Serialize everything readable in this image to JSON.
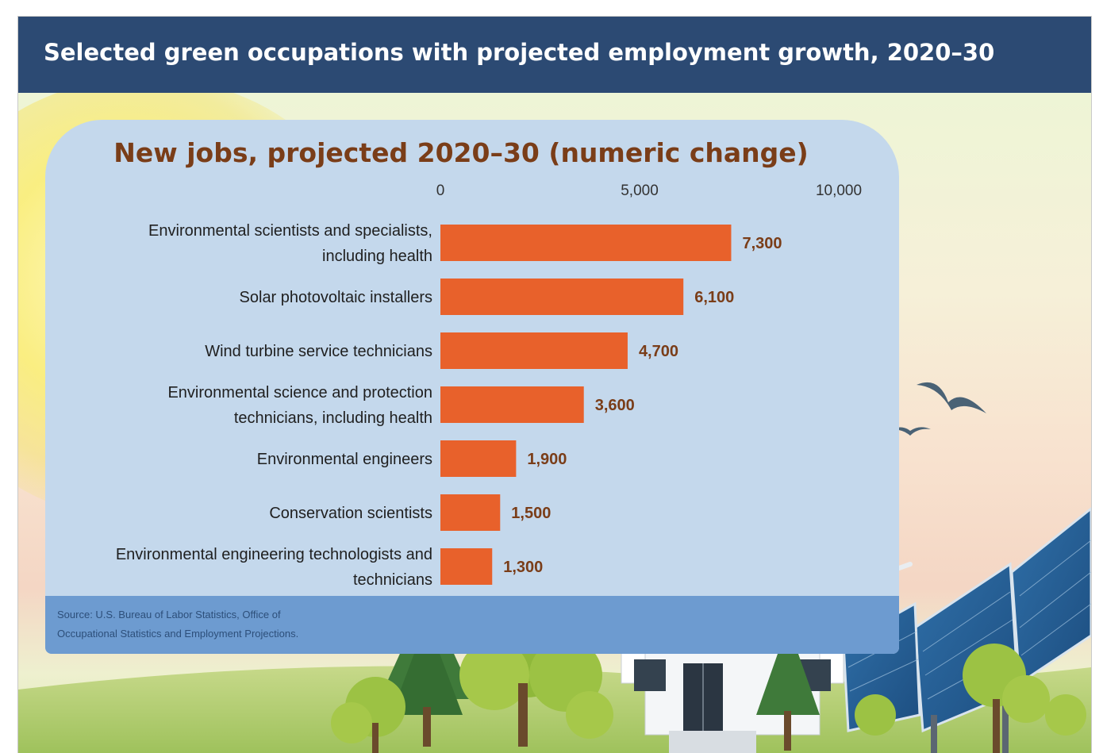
{
  "header": {
    "title": "Selected green occupations with projected employment growth, 2020–30"
  },
  "chart_data": {
    "type": "bar",
    "orientation": "horizontal",
    "title": "New jobs, projected 2020–30 (numeric change)",
    "categories": [
      "Environmental scientists and specialists, including health",
      "Solar photovoltaic installers",
      "Wind turbine service technicians",
      "Environmental science and protection technicians, including health",
      "Environmental engineers",
      "Conservation scientists",
      "Environmental engineering technologists and technicians"
    ],
    "category_lines": [
      [
        "Environmental scientists and specialists,",
        "including health"
      ],
      [
        "Solar photovoltaic installers"
      ],
      [
        "Wind turbine service technicians"
      ],
      [
        "Environmental science and protection",
        "technicians, including health"
      ],
      [
        "Environmental engineers"
      ],
      [
        "Conservation scientists"
      ],
      [
        "Environmental engineering technologists and",
        "technicians"
      ]
    ],
    "values": [
      7300,
      6100,
      4700,
      3600,
      1900,
      1500,
      1300
    ],
    "value_labels": [
      "7,300",
      "6,100",
      "4,700",
      "3,600",
      "1,900",
      "1,500",
      "1,300"
    ],
    "xlim": [
      0,
      10000
    ],
    "xticks": [
      0,
      5000,
      10000
    ],
    "xtick_labels": [
      "0",
      "5,000",
      "10,000"
    ],
    "axis_position": "top",
    "grid": false,
    "bar_color": "#e8612b"
  },
  "source": {
    "line1": "Source: U.S. Bureau of Labor Statistics, Office of",
    "line2": "Occupational Statistics and Employment Projections."
  },
  "colors": {
    "header_bg": "#2c4a73",
    "panel_bg": "#c4d8ec",
    "title_color": "#7a3d18"
  }
}
